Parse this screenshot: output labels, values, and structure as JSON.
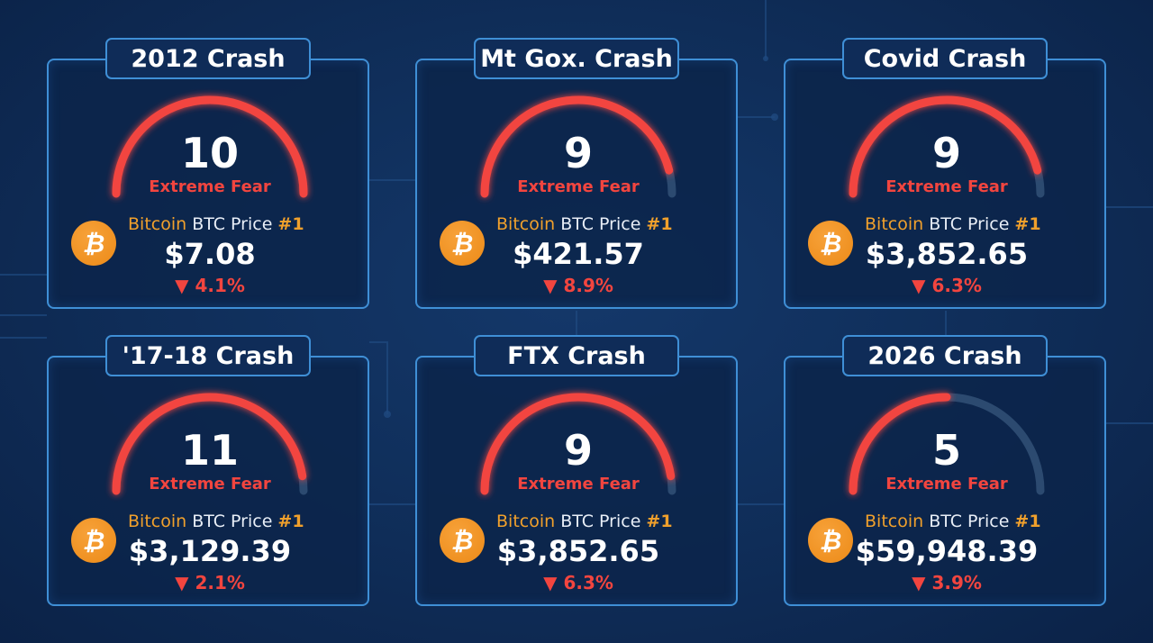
{
  "colors": {
    "accent_red": "#f2453f",
    "bitcoin_orange": "#ec8a17",
    "card_border": "#3f8fd6",
    "gauge_track": "#2c4a70"
  },
  "coin_icon": "bitcoin-icon",
  "cards": [
    {
      "title": "2012 Crash",
      "score": "10",
      "gauge_fill": 1.0,
      "sentiment": "Extreme Fear",
      "coin_name": "Bitcoin",
      "coin_desc": " BTC Price ",
      "rank": "#1",
      "price": "$7.08",
      "change": "▼ 4.1%"
    },
    {
      "title": "Mt Gox. Crash",
      "score": "9",
      "gauge_fill": 0.92,
      "sentiment": "Extreme Fear",
      "coin_name": "Bitcoin",
      "coin_desc": " BTC Price ",
      "rank": "#1",
      "price": "$421.57",
      "change": "▼ 8.9%"
    },
    {
      "title": "Covid Crash",
      "score": "9",
      "gauge_fill": 0.92,
      "sentiment": "Extreme Fear",
      "coin_name": "Bitcoin",
      "coin_desc": " BTC Price ",
      "rank": "#1",
      "price": "$3,852.65",
      "change": "▼ 6.3%"
    },
    {
      "title": "'17-18 Crash",
      "score": "11",
      "gauge_fill": 0.95,
      "sentiment": "Extreme Fear",
      "coin_name": "Bitcoin",
      "coin_desc": " BTC Price ",
      "rank": "#1",
      "price": "$3,129.39",
      "change": "▼ 2.1%"
    },
    {
      "title": "FTX Crash",
      "score": "9",
      "gauge_fill": 0.95,
      "sentiment": "Extreme Fear",
      "coin_name": "Bitcoin",
      "coin_desc": " BTC Price ",
      "rank": "#1",
      "price": "$3,852.65",
      "change": "▼ 6.3%"
    },
    {
      "title": "2026 Crash",
      "score": "5",
      "gauge_fill": 0.5,
      "sentiment": "Extreme Fear",
      "coin_name": "Bitcoin",
      "coin_desc": " BTC Price ",
      "rank": "#1",
      "price": "$59,948.39",
      "change": "▼ 3.9%"
    }
  ]
}
